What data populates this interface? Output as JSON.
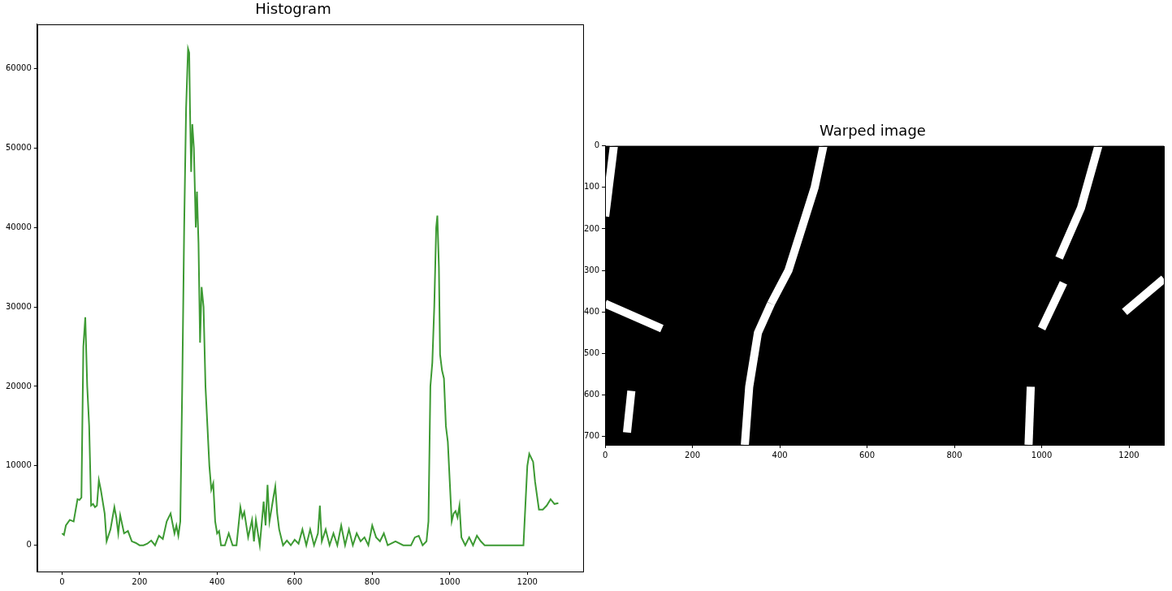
{
  "chart_data": [
    {
      "type": "line",
      "title": "Histogram",
      "color": "#3d9a33",
      "grid": false,
      "xlim": [
        -64,
        1344
      ],
      "xticks": [
        0,
        200,
        400,
        600,
        800,
        1000,
        1200
      ],
      "ylim": [
        -3300,
        65600
      ],
      "yticks": [
        0,
        10000,
        20000,
        30000,
        40000,
        50000,
        60000
      ],
      "x": [
        0,
        5,
        10,
        20,
        30,
        40,
        45,
        50,
        55,
        60,
        65,
        70,
        75,
        80,
        85,
        90,
        95,
        100,
        110,
        115,
        125,
        135,
        140,
        145,
        150,
        160,
        170,
        180,
        190,
        200,
        210,
        220,
        230,
        240,
        250,
        260,
        270,
        280,
        290,
        295,
        300,
        305,
        310,
        315,
        320,
        325,
        328,
        330,
        333,
        336,
        340,
        345,
        348,
        352,
        356,
        360,
        365,
        370,
        375,
        380,
        385,
        390,
        395,
        400,
        405,
        410,
        420,
        430,
        440,
        450,
        460,
        465,
        470,
        480,
        490,
        495,
        500,
        510,
        520,
        525,
        530,
        535,
        545,
        550,
        555,
        560,
        570,
        580,
        590,
        600,
        610,
        620,
        630,
        640,
        650,
        660,
        665,
        670,
        680,
        690,
        700,
        710,
        720,
        730,
        740,
        750,
        760,
        770,
        780,
        790,
        800,
        810,
        820,
        830,
        840,
        860,
        880,
        900,
        910,
        920,
        930,
        940,
        945,
        950,
        955,
        960,
        965,
        968,
        972,
        975,
        980,
        985,
        990,
        995,
        1000,
        1005,
        1010,
        1015,
        1020,
        1025,
        1030,
        1040,
        1050,
        1060,
        1070,
        1080,
        1090,
        1100,
        1150,
        1190,
        1195,
        1200,
        1205,
        1210,
        1215,
        1220,
        1230,
        1240,
        1250,
        1260,
        1270,
        1280
      ],
      "values": [
        1500,
        1300,
        2500,
        3200,
        3000,
        5800,
        5700,
        6000,
        25000,
        28700,
        20000,
        15000,
        5000,
        5200,
        4800,
        5000,
        8200,
        7000,
        4000,
        500,
        2000,
        4800,
        3500,
        1500,
        3800,
        1500,
        1800,
        500,
        300,
        0,
        0,
        200,
        600,
        0,
        1200,
        800,
        3000,
        4000,
        1500,
        2500,
        1200,
        3000,
        20000,
        40000,
        55000,
        62500,
        62000,
        55000,
        47000,
        53000,
        50000,
        40000,
        44500,
        38000,
        25500,
        32500,
        30000,
        20000,
        15000,
        10000,
        7000,
        7800,
        3000,
        1500,
        1800,
        0,
        0,
        1500,
        0,
        0,
        4800,
        3500,
        4200,
        1000,
        3200,
        500,
        3200,
        0,
        5500,
        2500,
        7600,
        3000,
        6000,
        7400,
        4000,
        2000,
        0,
        600,
        0,
        700,
        200,
        2000,
        0,
        2000,
        0,
        1500,
        5000,
        500,
        2000,
        0,
        1500,
        0,
        2500,
        0,
        2000,
        0,
        1500,
        500,
        1000,
        0,
        2500,
        1000,
        500,
        1500,
        0,
        500,
        0,
        0,
        1000,
        1200,
        0,
        500,
        3000,
        20000,
        23000,
        30000,
        40000,
        41500,
        35000,
        24000,
        22000,
        21000,
        15000,
        13000,
        8000,
        3000,
        4000,
        4300,
        3500,
        5000,
        1000,
        0,
        1000,
        0,
        1200,
        500,
        0,
        0,
        0,
        0,
        5000,
        10000,
        11500,
        11000,
        10500,
        8000,
        4500,
        4500,
        5000,
        5800,
        5200,
        5300
      ]
    },
    {
      "type": "image",
      "title": "Warped image",
      "color": "#ffffff",
      "grid": false,
      "xlim": [
        0,
        1280
      ],
      "xticks": [
        0,
        200,
        400,
        600,
        800,
        1000,
        1200
      ],
      "ylim": [
        720,
        0
      ],
      "yticks": [
        0,
        100,
        200,
        300,
        400,
        500,
        600,
        700
      ],
      "lane_marks": [
        {
          "x": [
            320,
            330,
            350,
            380
          ],
          "y": [
            720,
            580,
            450,
            380
          ]
        },
        {
          "x": [
            380,
            420,
            450,
            480,
            500
          ],
          "y": [
            380,
            300,
            200,
            100,
            0
          ]
        },
        {
          "x": [
            970,
            975
          ],
          "y": [
            720,
            580
          ]
        },
        {
          "x": [
            1000,
            1050
          ],
          "y": [
            440,
            330
          ]
        },
        {
          "x": [
            1040,
            1090,
            1130
          ],
          "y": [
            270,
            150,
            0
          ]
        },
        {
          "x": [
            0,
            20
          ],
          "y": [
            170,
            0
          ]
        },
        {
          "x": [
            50,
            60
          ],
          "y": [
            690,
            590
          ]
        },
        {
          "x": [
            0,
            130
          ],
          "y": [
            380,
            440
          ]
        },
        {
          "x": [
            1190,
            1280
          ],
          "y": [
            400,
            320
          ]
        }
      ]
    }
  ]
}
